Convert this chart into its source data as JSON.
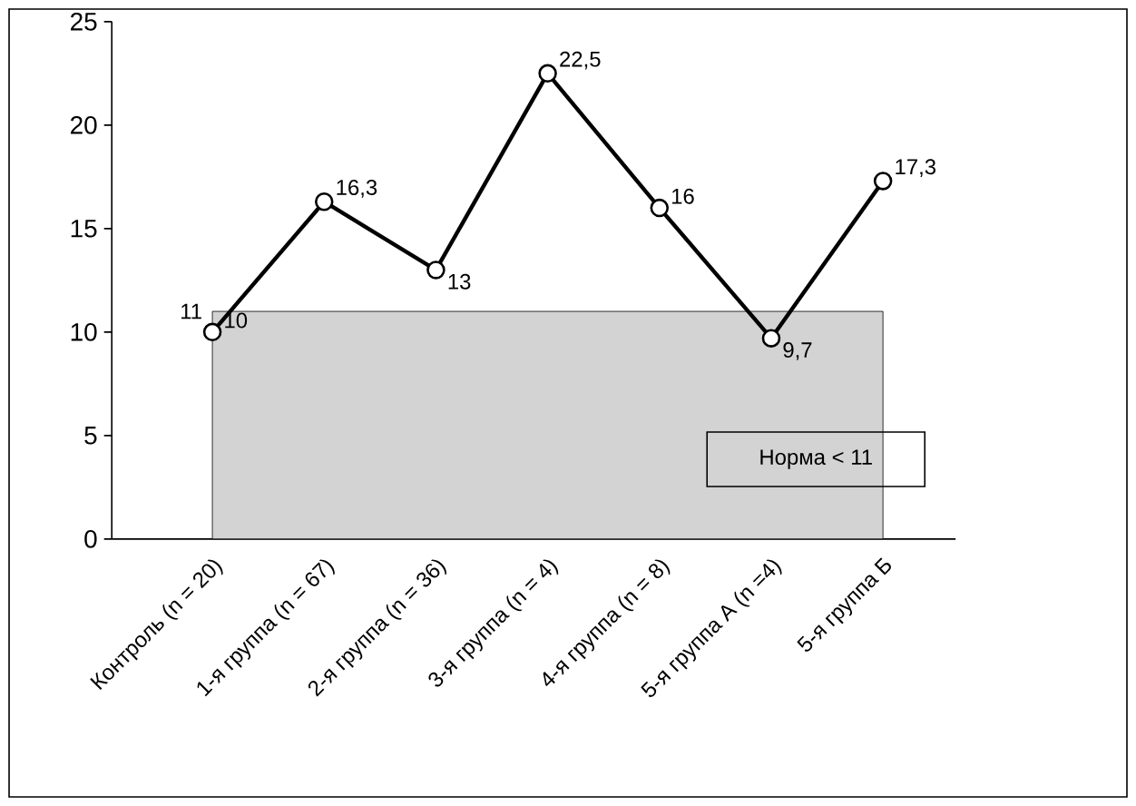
{
  "chart_data": {
    "type": "line",
    "categories": [
      "Контроль (n = 20)",
      "1-я группа (n = 67)",
      "2-я группа (n = 36)",
      "3-я группа (n = 4)",
      "4-я группа (n = 8)",
      "5-я группа А (n =4)",
      "5-я группа Б"
    ],
    "series": [
      {
        "color": "#000000",
        "values": [
          10,
          16.3,
          13,
          22.5,
          16,
          9.7,
          17.3
        ],
        "value_labels": [
          "10",
          "16,3",
          "13",
          "22,5",
          "16",
          "9,7",
          "17,3"
        ]
      }
    ],
    "marker": "circle",
    "line_style": "solid",
    "ylim": [
      0,
      25
    ],
    "yticks": [
      0,
      5,
      10,
      15,
      20,
      25
    ],
    "grid": false,
    "legend": false,
    "bands": [
      {
        "axis": "y",
        "from": 0,
        "to": 11,
        "label": "Норма < 11",
        "color": "#d3d3d3"
      }
    ],
    "annotations": [
      "11"
    ]
  }
}
